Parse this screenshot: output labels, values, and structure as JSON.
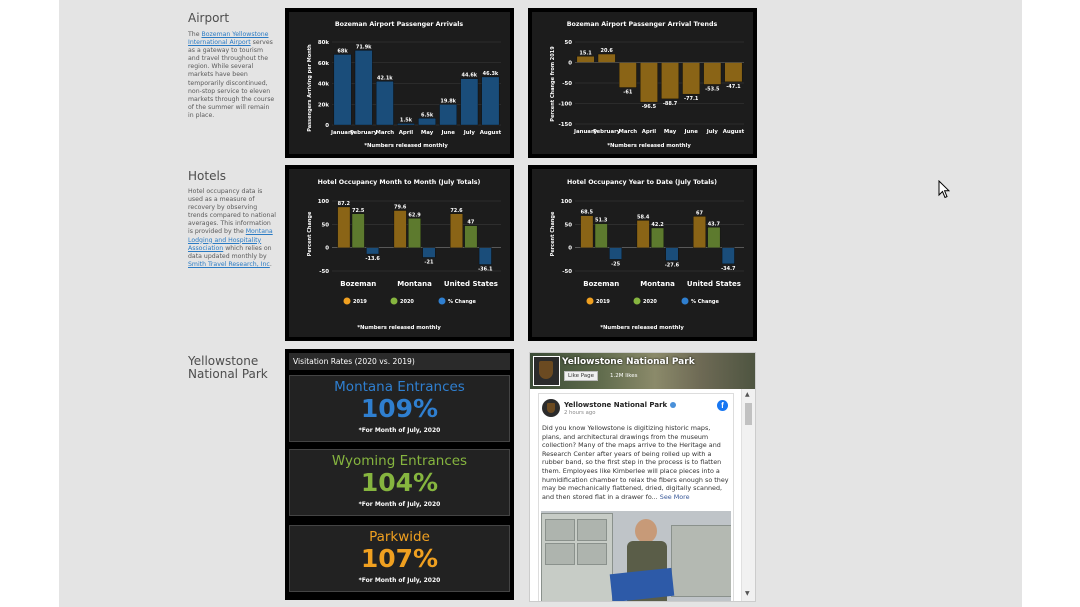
{
  "sections": {
    "airport": {
      "title": "Airport",
      "text_pre": "The ",
      "link": "Bozeman Yellowstone International Airport",
      "text_post": " serves as a gateway to tourism and travel throughout the region. While several markets have been temporarily discontinued, non-stop service to eleven markets through the course of the summer will remain in place."
    },
    "hotels": {
      "title": "Hotels",
      "text_pre": "Hotel occupancy data is used as a measure of recovery by observing trends compared to national averages. This information is provided by the ",
      "link1": "Montana Lodging and Hospitality Association",
      "text_mid": " which relies on data updated monthly by ",
      "link2": "Smith Travel Research, Inc",
      "text_post": "."
    },
    "yellowstone": {
      "title": "Yellowstone National Park"
    }
  },
  "charts": {
    "arrivals_title": "Bozeman Airport Passenger Arrivals",
    "arrivals_ylabel": "Passengers Arriving per Month",
    "arrivals_note": "*Numbers released monthly",
    "trends_title": "Bozeman Airport Passenger Arrival Trends",
    "trends_ylabel": "Percent Change from 2019",
    "trends_note": "*Numbers released monthly",
    "hotel_mm_title": "Hotel Occupancy Month to Month (July Totals)",
    "hotel_mm_ylabel": "Percent Change",
    "hotel_mm_note": "*Numbers released monthly",
    "hotel_ytd_title": "Hotel Occupancy Year to Date (July Totals)",
    "hotel_ytd_ylabel": "Percent Change",
    "hotel_ytd_note": "*Numbers released monthly",
    "legend_2019": "2019",
    "legend_2020": "2020",
    "legend_change": "% Change"
  },
  "chart_data": [
    {
      "type": "bar",
      "title": "Bozeman Airport Passenger Arrivals",
      "ylabel": "Passengers Arriving per Month",
      "categories": [
        "January",
        "February",
        "March",
        "April",
        "May",
        "June",
        "July",
        "August"
      ],
      "values": [
        68000,
        71900,
        42100,
        1500,
        6500,
        19800,
        44600,
        46300
      ],
      "labels": [
        "68k",
        "71.9k",
        "42.1k",
        "1.5k",
        "6.5k",
        "19.8k",
        "44.6k",
        "46.3k"
      ],
      "ylim": [
        0,
        80000
      ],
      "yticks": [
        "0",
        "20k",
        "40k",
        "60k",
        "80k"
      ],
      "color": "#1a4d7a",
      "note": "*Numbers released monthly"
    },
    {
      "type": "bar",
      "title": "Bozeman Airport Passenger Arrival Trends",
      "ylabel": "Percent Change from 2019",
      "categories": [
        "January",
        "February",
        "March",
        "April",
        "May",
        "June",
        "July",
        "August"
      ],
      "values": [
        15.1,
        20.6,
        -61,
        -96.5,
        -88.7,
        -77.1,
        -53.5,
        -47.1
      ],
      "labels": [
        "15.1",
        "20.6",
        "-61",
        "-96.5",
        "-88.7",
        "-77.1",
        "-53.5",
        "-47.1"
      ],
      "ylim": [
        -150,
        50
      ],
      "yticks": [
        "-150",
        "-100",
        "-50",
        "0",
        "50"
      ],
      "color": "#8a6416",
      "note": "*Numbers released monthly"
    },
    {
      "type": "bar",
      "title": "Hotel Occupancy Month to Month (July Totals)",
      "ylabel": "Percent Change",
      "categories": [
        "Bozeman",
        "Montana",
        "United States"
      ],
      "series": [
        {
          "name": "2019",
          "values": [
            87.2,
            79.6,
            72.6
          ],
          "labels": [
            "87.2",
            "79.6",
            "72.6"
          ],
          "color": "#8a6416"
        },
        {
          "name": "2020",
          "values": [
            72.5,
            62.9,
            47
          ],
          "labels": [
            "72.5",
            "62.9",
            "47"
          ],
          "color": "#5d7a2e"
        },
        {
          "name": "% Change",
          "values": [
            -13.6,
            -21,
            -36.1
          ],
          "labels": [
            "-13.6",
            "-21",
            "-36.1"
          ],
          "color": "#1a4d7a"
        }
      ],
      "ylim": [
        -50,
        100
      ],
      "yticks": [
        "-50",
        "0",
        "50",
        "100"
      ],
      "legend": "bottom",
      "note": "*Numbers released monthly"
    },
    {
      "type": "bar",
      "title": "Hotel Occupancy Year to Date (July Totals)",
      "ylabel": "Percent Change",
      "categories": [
        "Bozeman",
        "Montana",
        "United States"
      ],
      "series": [
        {
          "name": "2019",
          "values": [
            68.5,
            58.4,
            67
          ],
          "labels": [
            "68.5",
            "58.4",
            "67"
          ],
          "color": "#8a6416"
        },
        {
          "name": "2020",
          "values": [
            51.3,
            42.2,
            43.7
          ],
          "labels": [
            "51.3",
            "42.2",
            "43.7"
          ],
          "color": "#5d7a2e"
        },
        {
          "name": "% Change",
          "values": [
            -25,
            -27.6,
            -34.7
          ],
          "labels": [
            "-25",
            "-27.6",
            "-34.7"
          ],
          "color": "#1a4d7a"
        }
      ],
      "ylim": [
        -50,
        100
      ],
      "yticks": [
        "-50",
        "0",
        "50",
        "100"
      ],
      "legend": "bottom",
      "note": "*Numbers released monthly"
    }
  ],
  "visitation": {
    "header": "Visitation Rates (2020 vs. 2019)",
    "items": [
      {
        "label": "Montana Entrances",
        "value": "109%",
        "note": "*For Month of July, 2020",
        "color": "#2f7fd0"
      },
      {
        "label": "Wyoming Entrances",
        "value": "104%",
        "note": "*For Month of July, 2020",
        "color": "#86b53f"
      },
      {
        "label": "Parkwide",
        "value": "107%",
        "note": "*For Month of July, 2020",
        "color": "#f0a020"
      }
    ]
  },
  "facebook": {
    "page_name": "Yellowstone National Park",
    "like_button": "Like Page",
    "likes": "1.2M likes",
    "post_author": "Yellowstone National Park",
    "post_time": "2 hours ago",
    "post_text": "Did you know Yellowstone is digitizing historic maps, plans, and architectural drawings from the museum collection? Many of the maps arrive to the Heritage and Research Center after years of being rolled up with a rubber band, so the first step in the process is to flatten them. Employees like Kimberlee will place pieces into a humidification chamber to relax the fibers enough so they may be mechanically flattened, dried, digitally scanned, and then stored flat in a drawer fo...",
    "see_more": "See More"
  },
  "icons": {
    "facebook": "facebook-logo-icon",
    "verified": "verified-badge-icon",
    "cursor": "mouse-cursor-icon"
  }
}
